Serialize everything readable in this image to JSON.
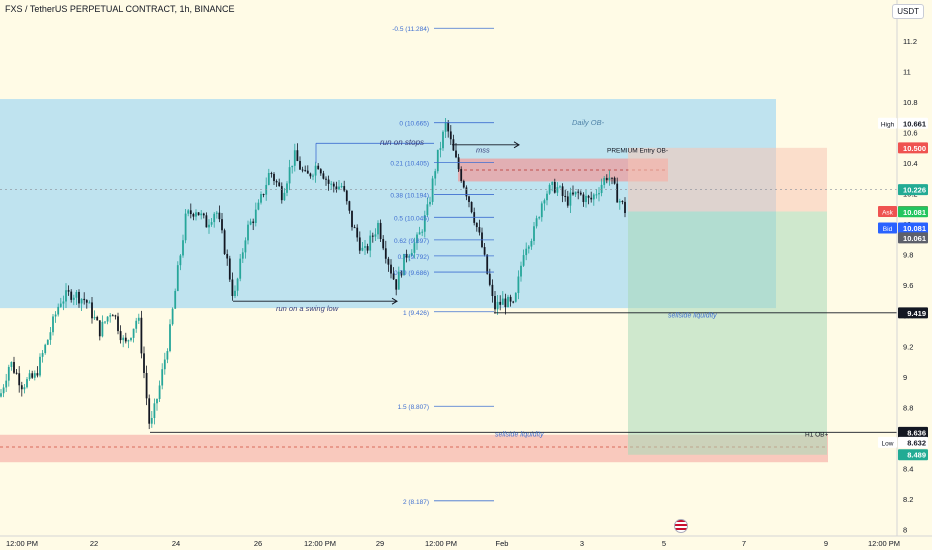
{
  "header": {
    "title": "FXS / TetherUS PERPETUAL CONTRACT, 1h, BINANCE",
    "currency": "USDT"
  },
  "colors": {
    "bull": "#26a69a",
    "bear": "#131722",
    "zone_blue": "#bfe3ef",
    "zone_red": "#f9c9bd",
    "fib": "#3f6fd1",
    "annotation": "#3a3f7a"
  },
  "chart_data": {
    "type": "candlestick",
    "x_ticks": [
      "12:00 PM",
      "22",
      "24",
      "26",
      "12:00 PM",
      "29",
      "12:00 PM",
      "Feb",
      "3",
      "5",
      "7",
      "9",
      "12:00 PM"
    ],
    "y_ticks": [
      8.0,
      8.2,
      8.4,
      8.6,
      8.8,
      9.0,
      9.2,
      9.4,
      9.6,
      9.8,
      10.0,
      10.2,
      10.4,
      10.6,
      10.8,
      11.0,
      11.2
    ],
    "y_range": [
      7.95,
      11.38
    ],
    "price_path": [
      [
        0,
        8.87
      ],
      [
        10,
        9.1
      ],
      [
        22,
        8.95
      ],
      [
        35,
        9.0
      ],
      [
        48,
        9.25
      ],
      [
        60,
        9.5
      ],
      [
        72,
        9.55
      ],
      [
        86,
        9.5
      ],
      [
        100,
        9.3
      ],
      [
        112,
        9.45
      ],
      [
        125,
        9.2
      ],
      [
        138,
        9.4
      ],
      [
        150,
        8.65
      ],
      [
        160,
        8.95
      ],
      [
        170,
        9.3
      ],
      [
        178,
        9.7
      ],
      [
        186,
        10.05
      ],
      [
        196,
        10.1
      ],
      [
        206,
        10.0
      ],
      [
        216,
        10.1
      ],
      [
        226,
        9.8
      ],
      [
        234,
        9.5
      ],
      [
        246,
        9.95
      ],
      [
        258,
        10.1
      ],
      [
        270,
        10.35
      ],
      [
        282,
        10.2
      ],
      [
        294,
        10.45
      ],
      [
        306,
        10.3
      ],
      [
        318,
        10.4
      ],
      [
        330,
        10.25
      ],
      [
        342,
        10.25
      ],
      [
        352,
        10.0
      ],
      [
        364,
        9.8
      ],
      [
        378,
        10.0
      ],
      [
        390,
        9.72
      ],
      [
        396,
        9.6
      ],
      [
        406,
        9.8
      ],
      [
        418,
        9.9
      ],
      [
        428,
        10.1
      ],
      [
        436,
        10.4
      ],
      [
        446,
        10.66
      ],
      [
        454,
        10.45
      ],
      [
        462,
        10.3
      ],
      [
        472,
        10.1
      ],
      [
        482,
        9.85
      ],
      [
        488,
        9.65
      ],
      [
        494,
        9.45
      ],
      [
        504,
        9.5
      ],
      [
        514,
        9.45
      ],
      [
        524,
        9.85
      ],
      [
        534,
        9.95
      ],
      [
        544,
        10.2
      ],
      [
        556,
        10.25
      ],
      [
        566,
        10.15
      ],
      [
        578,
        10.2
      ],
      [
        590,
        10.15
      ],
      [
        600,
        10.25
      ],
      [
        608,
        10.33
      ],
      [
        616,
        10.2
      ],
      [
        626,
        10.08
      ]
    ],
    "fib_levels": [
      {
        "label": "-0.5 (11.284)",
        "value": 11.284
      },
      {
        "label": "0 (10.665)",
        "value": 10.665
      },
      {
        "label": "0.21 (10.405)",
        "value": 10.405
      },
      {
        "label": "0.38 (10.194)",
        "value": 10.194
      },
      {
        "label": "0.5 (10.045)",
        "value": 10.045
      },
      {
        "label": "0.62 (9.897)",
        "value": 9.897
      },
      {
        "label": "0.7 (9.792)",
        "value": 9.792
      },
      {
        "label": "0.79 (9.686)",
        "value": 9.686
      },
      {
        "label": "1 (9.426)",
        "value": 9.426
      },
      {
        "label": "1.5 (8.807)",
        "value": 8.807
      },
      {
        "label": "2 (8.187)",
        "value": 8.187
      }
    ],
    "annotations": {
      "daily_ob": "Daily OB-",
      "premium_entry": "PREMIUM Entry OB-",
      "run_on_stops": "run on stops",
      "mss": "mss",
      "run_swing_low": "run on a swing low",
      "sellside_1": "sellside liquidity",
      "sellside_2": "sellside liquidity",
      "h1_ob": "H1 OB+"
    },
    "price_labels": {
      "high_label": "High",
      "high_value": "10.661",
      "level_10500": "10.500",
      "dashed_value": "10.226",
      "ask_label": "Ask",
      "ask_value": "10.083",
      "last_value": "10.081",
      "bid_label": "Bid",
      "bid_value": "10.081",
      "gray_value": "10.061",
      "liq_value": "9.419",
      "liq2_value": "8.636",
      "low_label": "Low",
      "low_value": "8.632",
      "target_value": "8.489"
    }
  }
}
